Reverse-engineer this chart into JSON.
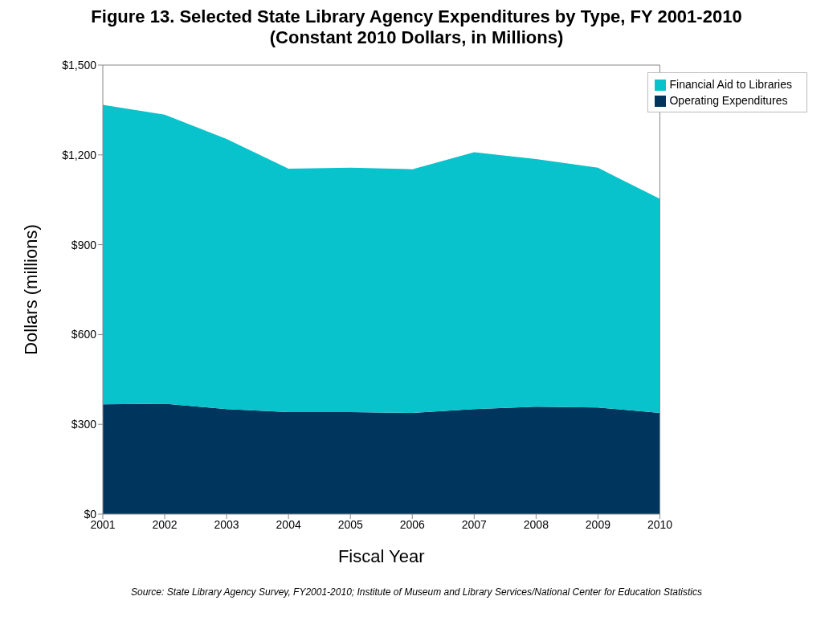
{
  "chart_data": {
    "type": "area",
    "title": "Figure 13. Selected State Library Agency Expenditures by Type, FY 2001-2010",
    "subtitle": "(Constant 2010 Dollars, in Millions)",
    "xlabel": "Fiscal Year",
    "ylabel": "Dollars (millions)",
    "x": [
      2001,
      2002,
      2003,
      2004,
      2005,
      2006,
      2007,
      2008,
      2009,
      2010
    ],
    "series": [
      {
        "name": "Operating Expenditures",
        "color": "#00365e",
        "values": [
          367,
          369,
          351,
          341,
          341,
          338,
          351,
          359,
          356,
          338
        ]
      },
      {
        "name": "Financial Aid to Libraries",
        "color": "#08c3cc",
        "values": [
          1000,
          965,
          902,
          813,
          816,
          814,
          858,
          827,
          801,
          715
        ]
      }
    ],
    "stacked": true,
    "xlim": [
      2001,
      2010
    ],
    "xticks": [
      2001,
      2002,
      2003,
      2004,
      2005,
      2006,
      2007,
      2008,
      2009,
      2010
    ],
    "ylim": [
      0,
      1500
    ],
    "yticks": [
      {
        "value": 0,
        "label": "$0"
      },
      {
        "value": 300,
        "label": "$300"
      },
      {
        "value": 600,
        "label": "$600"
      },
      {
        "value": 900,
        "label": "$900"
      },
      {
        "value": 1200,
        "label": "$1,200"
      },
      {
        "value": 1500,
        "label": "$1,500"
      }
    ],
    "legend": "top right",
    "grid": false,
    "annotations": [
      "Source: State Library Agency Survey, FY2001-2010; Institute of Museum and Library Services/National Center for Education Statistics"
    ]
  }
}
